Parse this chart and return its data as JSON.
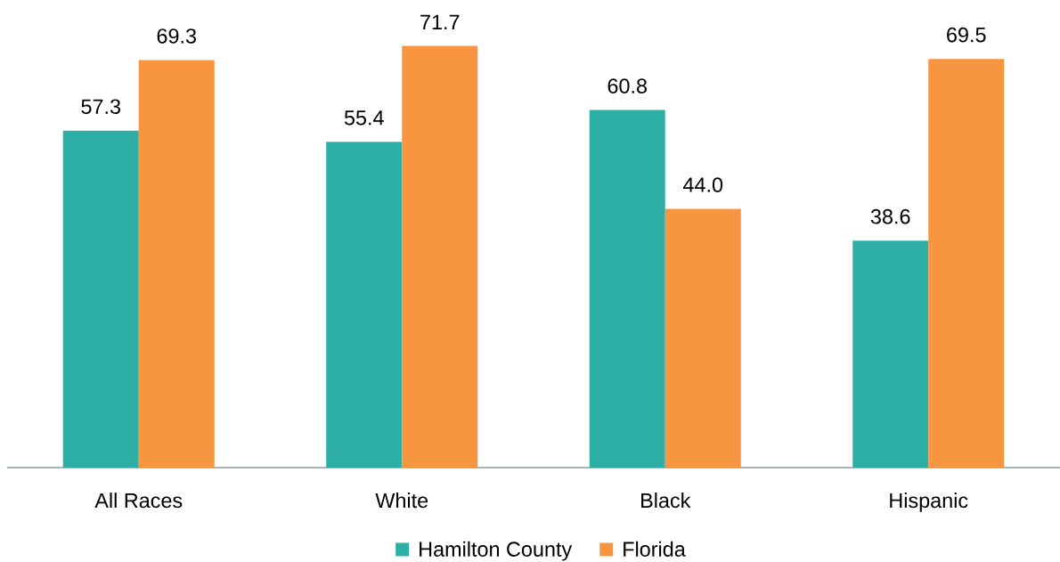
{
  "chart_data": {
    "type": "bar",
    "categories": [
      "All Races",
      "White",
      "Black",
      "Hispanic"
    ],
    "series": [
      {
        "name": "Hamilton County",
        "color": "#2eafa5",
        "values": [
          57.3,
          55.4,
          60.8,
          38.6
        ],
        "value_labels": [
          "57.3",
          "55.4",
          "60.8",
          "38.6"
        ]
      },
      {
        "name": "Florida",
        "color": "#f79541",
        "values": [
          69.3,
          71.7,
          44.0,
          69.5
        ],
        "value_labels": [
          "69.3",
          "71.7",
          "44.0",
          "69.5"
        ]
      }
    ],
    "legend": "bottom"
  }
}
